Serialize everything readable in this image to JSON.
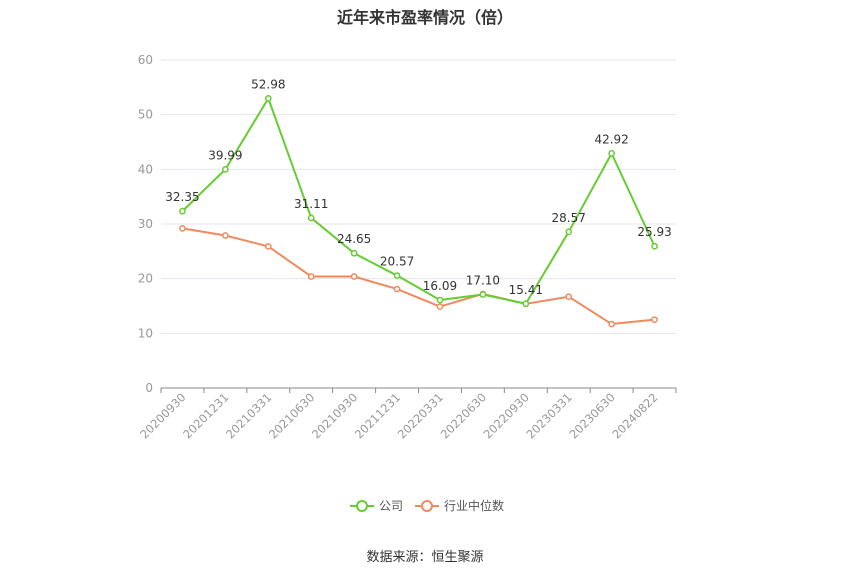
{
  "page": {
    "title": "近年来市盈率情况（倍）",
    "source": "数据来源：恒生聚源"
  },
  "colors": {
    "company": "#66cc33",
    "industry": "#f08a5d",
    "axis": "#999999",
    "grid": "#e4e4ee"
  },
  "chart_data": {
    "type": "line",
    "title": "近年来市盈率情况（倍）",
    "categories": [
      "20200930",
      "20201231",
      "20210331",
      "20210630",
      "20210930",
      "20211231",
      "20220331",
      "20220630",
      "20220930",
      "20230331",
      "20230630",
      "20240822"
    ],
    "y_ticks": [
      0,
      10,
      20,
      30,
      40,
      50,
      60
    ],
    "ylim": [
      0,
      60
    ],
    "grid": true,
    "legend_position": "bottom-center",
    "series": [
      {
        "name": "公司",
        "values": [
          32.35,
          39.99,
          52.98,
          31.11,
          24.65,
          20.57,
          16.09,
          17.1,
          15.41,
          28.57,
          42.92,
          25.93
        ],
        "labels": [
          "32.35",
          "39.99",
          "52.98",
          "31.11",
          "24.65",
          "20.57",
          "16.09",
          "17.10",
          "15.41",
          "28.57",
          "42.92",
          "25.93"
        ],
        "color": "#66cc33"
      },
      {
        "name": "行业中位数",
        "values": [
          29.2,
          27.9,
          25.9,
          20.4,
          20.4,
          18.1,
          14.9,
          17.2,
          15.4,
          16.7,
          11.7,
          12.5
        ],
        "color": "#f08a5d"
      }
    ]
  }
}
